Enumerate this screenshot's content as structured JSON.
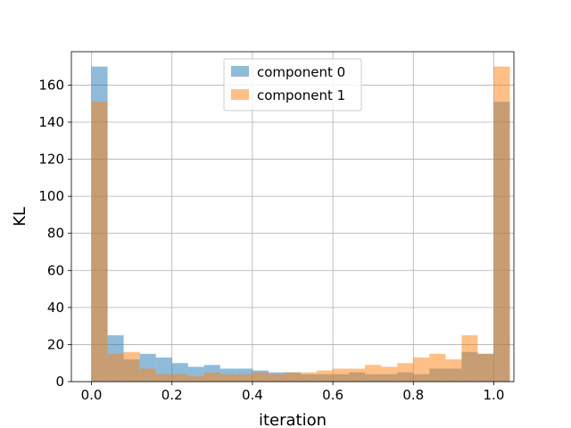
{
  "chart_data": {
    "type": "bar",
    "title": "",
    "xlabel": "iteration",
    "ylabel": "KL",
    "xlim": [
      -0.05,
      1.05
    ],
    "ylim": [
      0,
      178
    ],
    "xticks": [
      0.0,
      0.2,
      0.4,
      0.6,
      0.8,
      1.0
    ],
    "xtick_labels": [
      "0.0",
      "0.2",
      "0.4",
      "0.6",
      "0.8",
      "1.0"
    ],
    "yticks": [
      0,
      20,
      40,
      60,
      80,
      100,
      120,
      140,
      160
    ],
    "ytick_labels": [
      "0",
      "20",
      "40",
      "60",
      "80",
      "100",
      "120",
      "140",
      "160"
    ],
    "grid": true,
    "legend_position": "top-center",
    "bin_start": 0.0,
    "bin_width": 0.04,
    "series": [
      {
        "name": "component 0",
        "color": "#1f77b4",
        "alpha": 0.5,
        "values": [
          170,
          25,
          12,
          15,
          13,
          10,
          8,
          9,
          7,
          7,
          6,
          5,
          5,
          4,
          4,
          4,
          5,
          4,
          4,
          5,
          4,
          7,
          7,
          16,
          15,
          151
        ]
      },
      {
        "name": "component 1",
        "color": "#ff7f0e",
        "alpha": 0.5,
        "values": [
          151,
          15,
          16,
          7,
          4,
          4,
          3,
          5,
          4,
          4,
          5,
          4,
          5,
          5,
          6,
          7,
          7,
          9,
          8,
          10,
          13,
          15,
          12,
          25,
          15,
          170
        ]
      }
    ]
  }
}
